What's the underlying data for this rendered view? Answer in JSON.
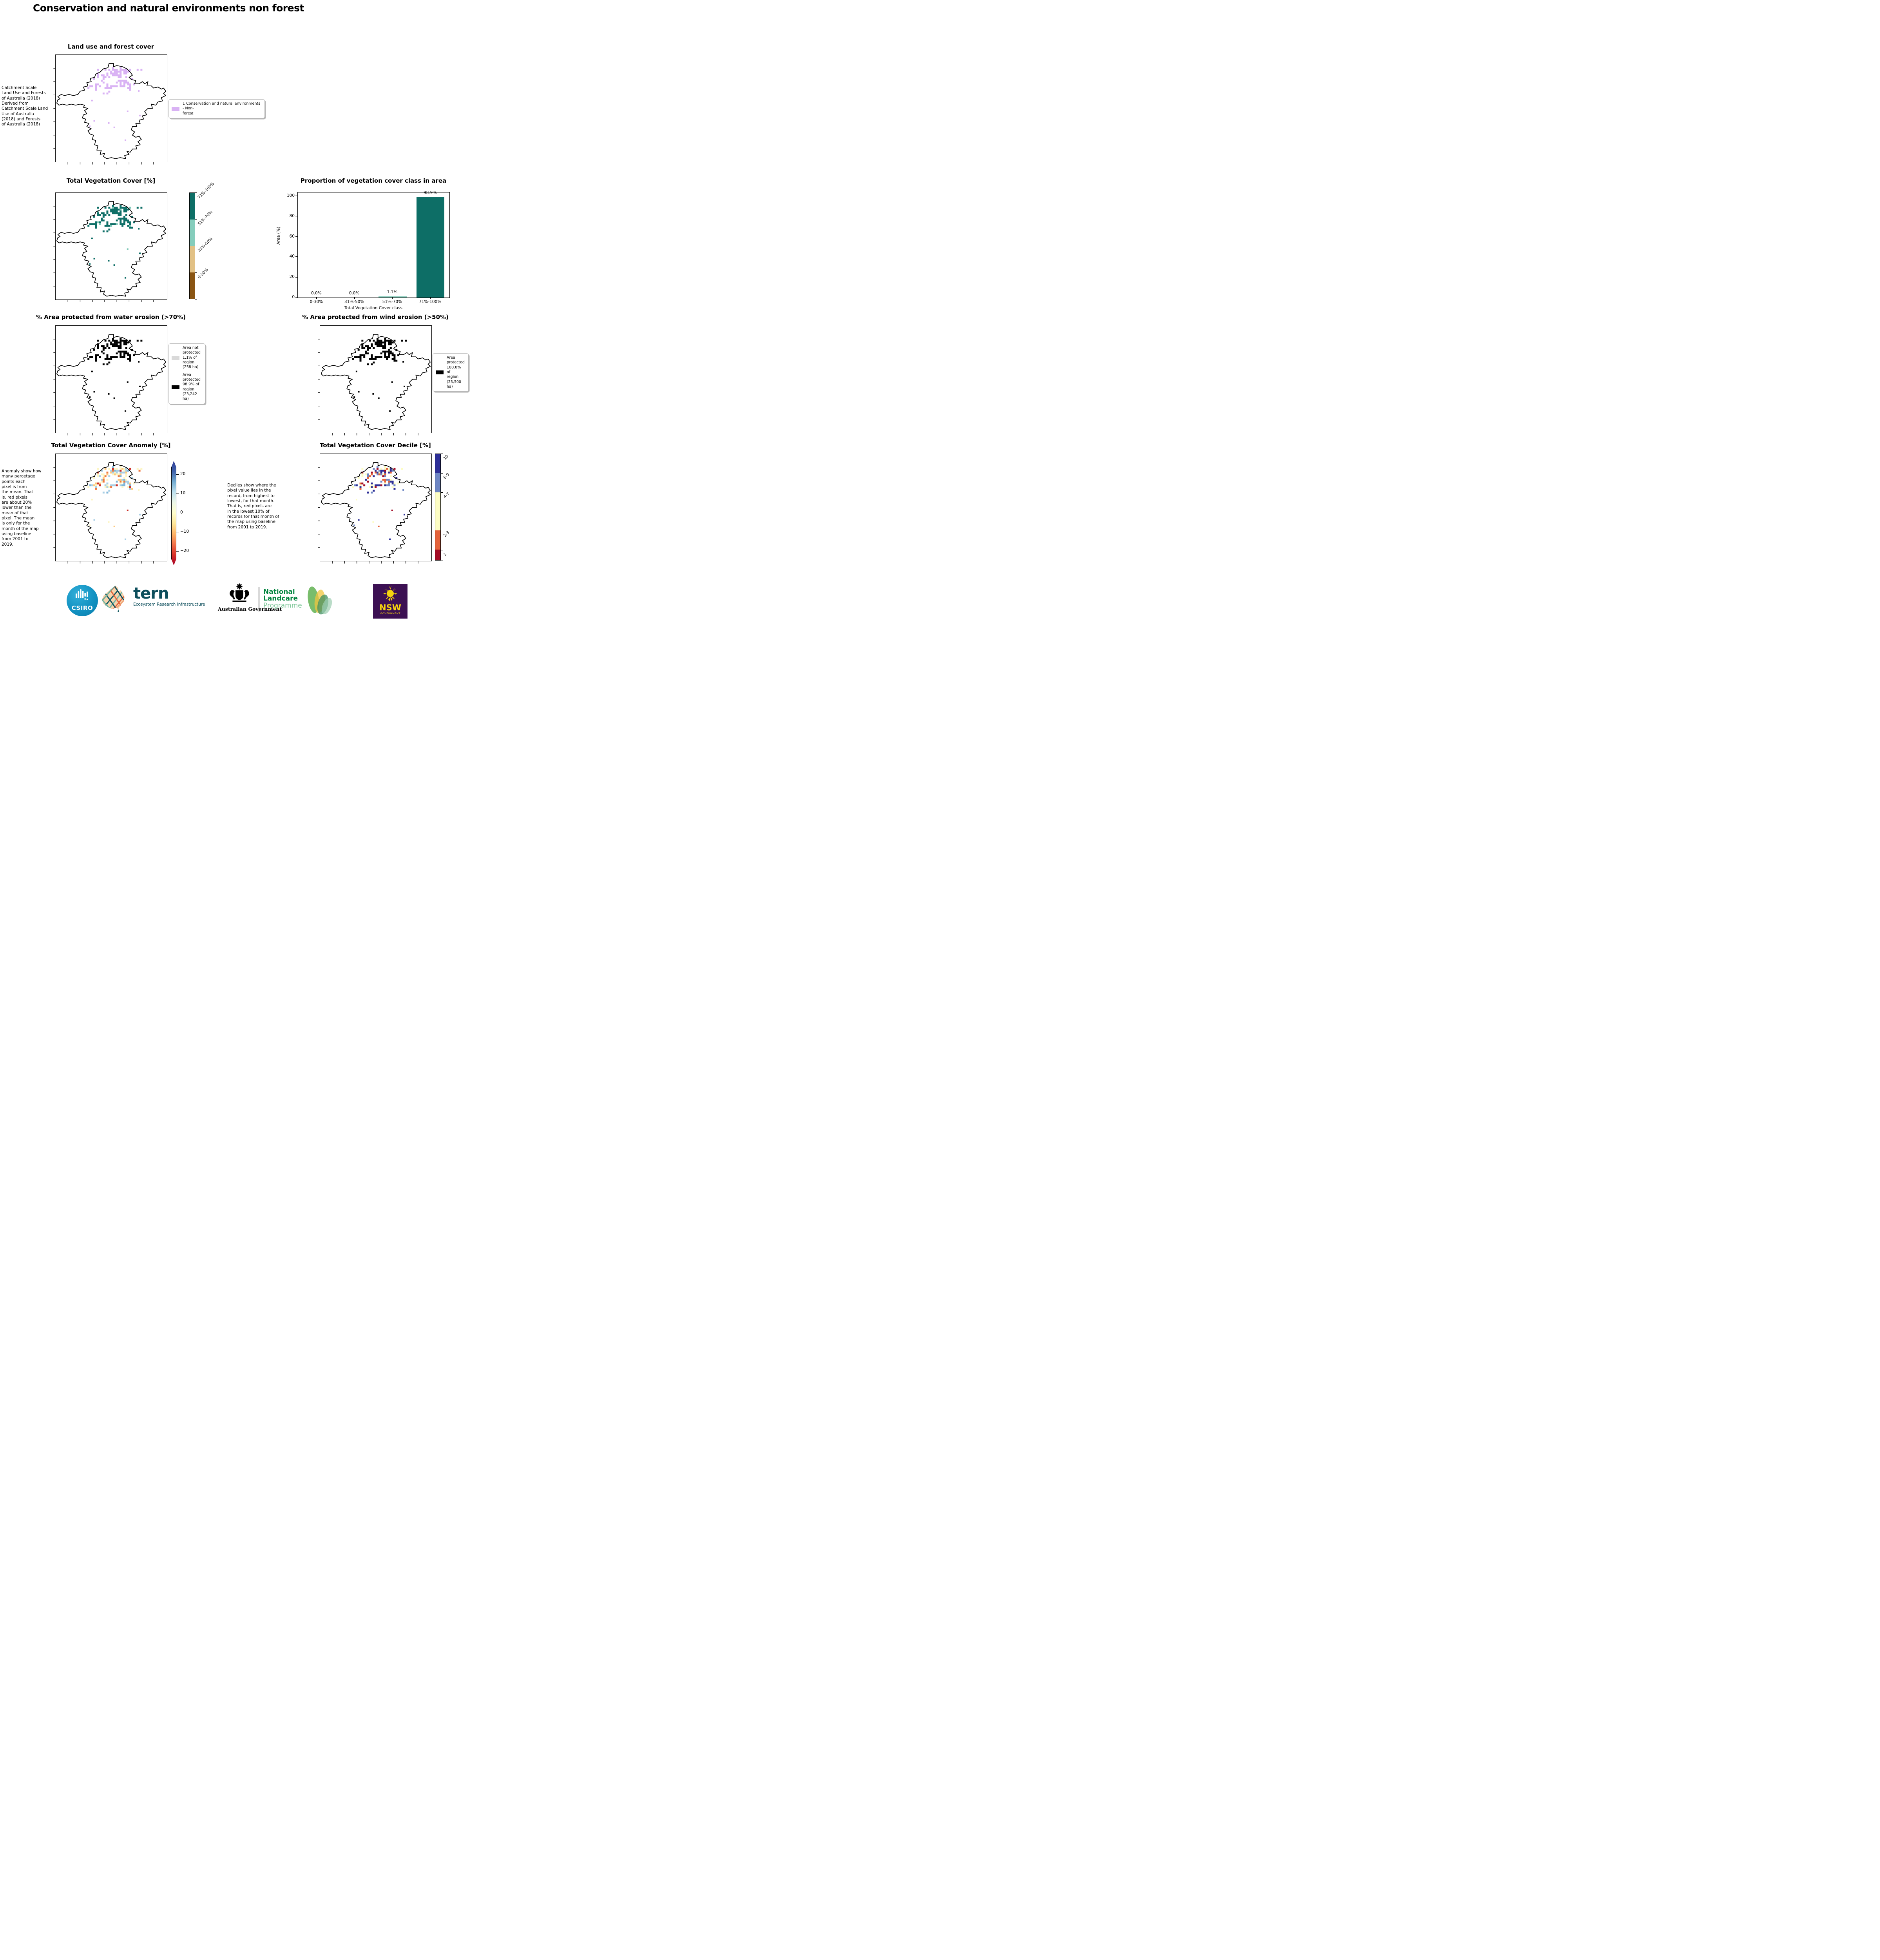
{
  "page_title": "Conservation and natural environments non forest",
  "panels": {
    "landuse": {
      "title": "Land use and forest cover",
      "side_text": "Catchment Scale\nLand Use and Forests\nof Australia (2018)\nDerived from\nCatchment Scale Land\nUse of Australia\n(2018) and Forests\nof Australia (2018)",
      "legend": [
        {
          "color": "#d9b2f4",
          "label": "1 Conservation and natural environments - Non-\nforest"
        }
      ]
    },
    "vegcover": {
      "title": "Total Vegetation Cover [%]",
      "colorbar": {
        "classes": [
          {
            "label": "71%-100%",
            "color": "#0d6e66",
            "size": 25
          },
          {
            "label": "51%-70%",
            "color": "#85cdbc",
            "size": 25
          },
          {
            "label": "31%-50%",
            "color": "#e2c185",
            "size": 25
          },
          {
            "label": "0-30%",
            "color": "#8a5513",
            "size": 25
          }
        ]
      }
    },
    "proportion": {
      "title": "Proportion of vegetation cover class in area"
    },
    "water": {
      "title": "% Area protected from water erosion (>70%)",
      "legend": [
        {
          "color": "#d9d9d9",
          "label": "Area not\nprotected\n1.1% of\nregion\n(258 ha)"
        },
        {
          "color": "#000000",
          "label": "Area\nprotected\n98.9% of\nregion\n(23,242\nha)"
        }
      ]
    },
    "wind": {
      "title": "% Area protected from wind erosion (>50%)",
      "legend": [
        {
          "color": "#000000",
          "label": "Area\nprotected\n100.0% of\nregion\n(23,500\nha)"
        }
      ]
    },
    "anomaly": {
      "title": "Total Vegetation Cover Anomaly [%]",
      "side_text": "Anomaly show how\nmany percetage\npoints each\npixel is from\nthe mean. That\nis, red pixels\nare about 20%\nlower than the\nmean of that\npixel. The mean\nis only for the\nmonth of the map\nusing baseline\nfrom 2001 to\n2019.",
      "colorbar": {
        "ticks": [
          "20",
          "10",
          "0",
          "−10",
          "−20"
        ],
        "gradient_top_to_bottom": [
          "#2f3c96",
          "#3f62ab",
          "#74add1",
          "#bfe0ed",
          "#eef8e8",
          "#fffecc",
          "#fee79a",
          "#fdb366",
          "#f0704a",
          "#d73027",
          "#a50026"
        ]
      }
    },
    "decile": {
      "title": "Total Vegetation Cover Decile [%]",
      "side_text": "Deciles show where the\npixel value lies in the\nrecord, from highest to\nlowest, for that month.\nThat is, red pixels are\nin the lowest 10% of\nrecords for that month of\nthe map using baseline\nfrom 2001 to 2019.",
      "colorbar": {
        "classes": [
          {
            "label": "10",
            "color": "#2d2f97",
            "size": 18
          },
          {
            "label": "8-9",
            "color": "#6e86c3",
            "size": 18
          },
          {
            "label": "4-7",
            "color": "#fdfdc4",
            "size": 36
          },
          {
            "label": "2-3",
            "color": "#e4633b",
            "size": 18
          },
          {
            "label": "1",
            "color": "#a30b25",
            "size": 10
          }
        ]
      }
    }
  },
  "maps": {
    "landuse": {
      "palette": [
        {
          "color": "#d9b2f4",
          "w": 1
        }
      ],
      "density": 0.8
    },
    "vegcover": {
      "palette": [
        {
          "color": "#0d6e66",
          "w": 0.92
        },
        {
          "color": "#7fc8b7",
          "w": 0.08
        }
      ],
      "density": 0.85
    },
    "water": {
      "palette": [
        {
          "color": "#000000",
          "w": 1
        }
      ],
      "density": 0.8
    },
    "wind": {
      "palette": [
        {
          "color": "#000000",
          "w": 1
        }
      ],
      "density": 0.85
    },
    "anomaly": {
      "palette": [
        {
          "color": "#a9cfe5",
          "w": 0.28
        },
        {
          "color": "#7fb6d8",
          "w": 0.1
        },
        {
          "color": "#fdf6c4",
          "w": 0.3
        },
        {
          "color": "#fdc87d",
          "w": 0.15
        },
        {
          "color": "#f0793f",
          "w": 0.11
        },
        {
          "color": "#cc2f27",
          "w": 0.06
        }
      ],
      "density": 0.9
    },
    "decile": {
      "palette": [
        {
          "color": "#2d2f97",
          "w": 0.27
        },
        {
          "color": "#6e86c3",
          "w": 0.18
        },
        {
          "color": "#fdfdc4",
          "w": 0.25
        },
        {
          "color": "#e4633b",
          "w": 0.2
        },
        {
          "color": "#a30b25",
          "w": 0.1
        }
      ],
      "density": 0.75
    }
  },
  "chart_data": {
    "type": "bar",
    "title": "Proportion of vegetation cover class in area",
    "xlabel": "Total Vegetation Cover class",
    "ylabel": "Area (%)",
    "categories": [
      "0-30%",
      "31%-50%",
      "51%-70%",
      "71%-100%"
    ],
    "values": [
      0.0,
      0.0,
      1.1,
      98.9
    ],
    "bar_labels": [
      "0.0%",
      "0.0%",
      "1.1%",
      "98.9%"
    ],
    "bar_colors": [
      "#0d6e66",
      "#0d6e66",
      "#8ecfbf",
      "#0d6e66"
    ],
    "ylim": [
      0,
      103.5
    ],
    "yticks": [
      0,
      20,
      40,
      60,
      80,
      100
    ],
    "grid": false,
    "legend_position": "none"
  },
  "footer": {
    "csiro_label": "CSIRO",
    "tern_label": "tern",
    "tern_sub": "Ecosystem Research Infrastructure",
    "aus_gov": "Australian Government",
    "nlp_line1": "National",
    "nlp_line2": "Landcare",
    "nlp_line3": "Programme",
    "nsw_label": "NSW",
    "nsw_sub": "GOVERNMENT",
    "colors": {
      "tern_teal": "#0d4e5c",
      "landcare_green": "#00843d",
      "landcare_light": "#7dc698",
      "nsw_purple": "#3c1053",
      "nsw_yellow": "#f6d50e",
      "csiro_teal": "#1292c2"
    }
  }
}
